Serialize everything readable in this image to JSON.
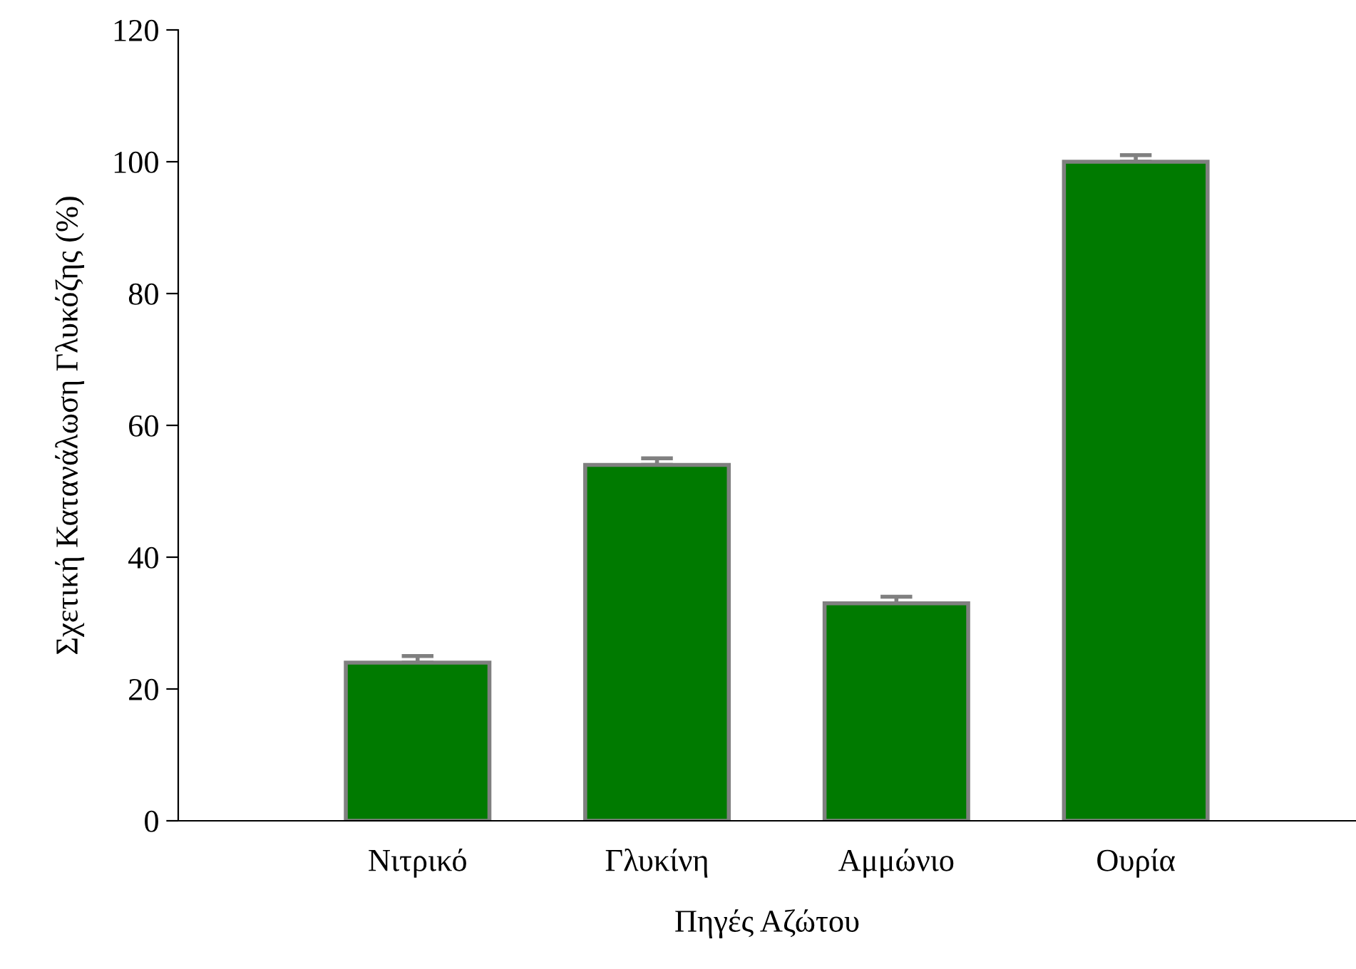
{
  "chart_data": {
    "type": "bar",
    "xlabel": "Πηγές Αζώτου",
    "ylabel": "Σχετική Κατανάλωση Γλυκόζης (%)",
    "categories": [
      "Νιτρικό",
      "Γλυκίνη",
      "Αμμώνιο",
      "Ουρία"
    ],
    "values": [
      24,
      54,
      33,
      100
    ],
    "errors": [
      [
        24,
        25
      ],
      [
        54,
        55
      ],
      [
        33,
        34
      ],
      [
        100,
        101
      ]
    ],
    "color": "#007a00",
    "ylim": [
      0,
      120
    ],
    "yticks": [
      0,
      20,
      40,
      60,
      80,
      100,
      120
    ],
    "grid": false
  }
}
